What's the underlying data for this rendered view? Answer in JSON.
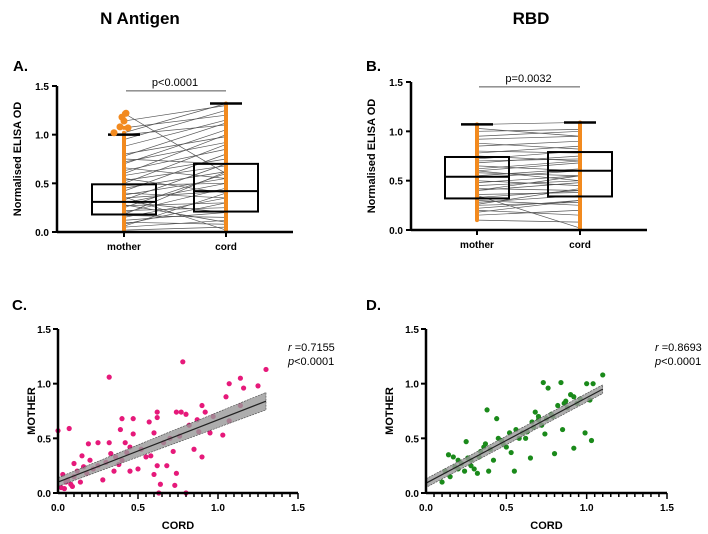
{
  "titles": {
    "left": "N Antigen",
    "right": "RBD"
  },
  "colors": {
    "paired_dots": "#f28a1f",
    "scatter_C": "#e6197a",
    "scatter_D": "#1a8a1a",
    "lines": "#555555",
    "ci_band": "#999999"
  },
  "chart_data": [
    {
      "panel": "A.",
      "type": "box-paired",
      "ylabel": "Normalised ELISA OD",
      "ylim": [
        0,
        1.5
      ],
      "yticks": [
        "0.0",
        "0.5",
        "1.0",
        "1.5"
      ],
      "categories": [
        "mother",
        "cord"
      ],
      "annotation": "p<0.0001",
      "boxes": [
        {
          "min": 0.0,
          "q1": 0.18,
          "median": 0.31,
          "q3": 0.49,
          "max": 1.0,
          "outliers": [
            1.02,
            1.07,
            1.08,
            1.14,
            1.18,
            1.22
          ]
        },
        {
          "min": 0.0,
          "q1": 0.21,
          "median": 0.42,
          "q3": 0.7,
          "max": 1.32
        }
      ],
      "pairs": [
        [
          0.02,
          0.05
        ],
        [
          0.05,
          0.12
        ],
        [
          0.08,
          0.3
        ],
        [
          0.1,
          0.08
        ],
        [
          0.12,
          0.2
        ],
        [
          0.15,
          0.35
        ],
        [
          0.17,
          0.15
        ],
        [
          0.2,
          0.45
        ],
        [
          0.22,
          0.25
        ],
        [
          0.25,
          0.6
        ],
        [
          0.27,
          0.3
        ],
        [
          0.3,
          0.5
        ],
        [
          0.31,
          0.2
        ],
        [
          0.33,
          0.7
        ],
        [
          0.35,
          0.42
        ],
        [
          0.38,
          0.55
        ],
        [
          0.4,
          0.35
        ],
        [
          0.42,
          0.8
        ],
        [
          0.45,
          0.62
        ],
        [
          0.48,
          0.5
        ],
        [
          0.5,
          0.9
        ],
        [
          0.53,
          0.68
        ],
        [
          0.55,
          0.4
        ],
        [
          0.58,
          0.75
        ],
        [
          0.6,
          1.0
        ],
        [
          0.63,
          0.85
        ],
        [
          0.66,
          0.55
        ],
        [
          0.7,
          1.05
        ],
        [
          0.72,
          0.92
        ],
        [
          0.75,
          0.7
        ],
        [
          0.78,
          1.12
        ],
        [
          0.8,
          0.98
        ],
        [
          0.88,
          1.15
        ],
        [
          0.95,
          1.25
        ],
        [
          1.0,
          1.1
        ],
        [
          1.02,
          1.32
        ],
        [
          1.07,
          1.2
        ],
        [
          1.14,
          1.3
        ],
        [
          1.22,
          0.6
        ],
        [
          0.28,
          0.1
        ],
        [
          0.36,
          0.02
        ],
        [
          0.18,
          0.62
        ],
        [
          0.06,
          0.4
        ]
      ]
    },
    {
      "panel": "B.",
      "type": "box-paired",
      "ylabel": "Normalised ELISA OD",
      "ylim": [
        0,
        1.5
      ],
      "yticks": [
        "0.0",
        "0.5",
        "1.0",
        "1.5"
      ],
      "categories": [
        "mother",
        "cord"
      ],
      "annotation": "p=0.0032",
      "boxes": [
        {
          "min": 0.1,
          "q1": 0.32,
          "median": 0.54,
          "q3": 0.74,
          "max": 1.07,
          "outliers": []
        },
        {
          "min": 0.0,
          "q1": 0.34,
          "median": 0.6,
          "q3": 0.79,
          "max": 1.09
        }
      ],
      "pairs": [
        [
          0.1,
          0.08
        ],
        [
          0.15,
          0.2
        ],
        [
          0.2,
          0.15
        ],
        [
          0.22,
          0.3
        ],
        [
          0.25,
          0.28
        ],
        [
          0.28,
          0.35
        ],
        [
          0.3,
          0.25
        ],
        [
          0.33,
          0.4
        ],
        [
          0.36,
          0.38
        ],
        [
          0.4,
          0.48
        ],
        [
          0.42,
          0.4
        ],
        [
          0.45,
          0.5
        ],
        [
          0.48,
          0.55
        ],
        [
          0.5,
          0.45
        ],
        [
          0.53,
          0.6
        ],
        [
          0.55,
          0.62
        ],
        [
          0.58,
          0.55
        ],
        [
          0.6,
          0.68
        ],
        [
          0.62,
          0.7
        ],
        [
          0.65,
          0.6
        ],
        [
          0.68,
          0.75
        ],
        [
          0.7,
          0.72
        ],
        [
          0.72,
          0.8
        ],
        [
          0.75,
          0.7
        ],
        [
          0.78,
          0.85
        ],
        [
          0.8,
          0.78
        ],
        [
          0.85,
          0.9
        ],
        [
          0.88,
          0.82
        ],
        [
          0.92,
          0.95
        ],
        [
          0.95,
          1.0
        ],
        [
          1.0,
          1.02
        ],
        [
          1.03,
          0.95
        ],
        [
          1.07,
          1.09
        ],
        [
          0.35,
          0.02
        ],
        [
          0.4,
          0.55
        ],
        [
          0.26,
          0.42
        ],
        [
          0.6,
          0.5
        ],
        [
          0.18,
          0.3
        ]
      ]
    },
    {
      "panel": "C.",
      "type": "scatter",
      "xlabel": "CORD",
      "ylabel": "MOTHER",
      "xlim": [
        0,
        1.5
      ],
      "ylim": [
        0,
        1.5
      ],
      "xticks": [
        "0.0",
        "0.5",
        "1.0",
        "1.5"
      ],
      "yticks": [
        "0.0",
        "0.5",
        "1.0",
        "1.5"
      ],
      "r_label": "r",
      "r_value": "=0.7155",
      "p_label": "p",
      "p_value": "<0.0001",
      "fit": {
        "x": [
          0,
          1.3
        ],
        "y": [
          0.1,
          0.84
        ],
        "ci_halfwidth": [
          0.04,
          0.08
        ]
      },
      "points": [
        [
          0,
          0.57
        ],
        [
          0.07,
          0.59
        ],
        [
          0.32,
          1.06
        ],
        [
          0.78,
          1.2
        ],
        [
          1.3,
          1.13
        ],
        [
          1.14,
          1.05
        ],
        [
          1.07,
          1.0
        ],
        [
          1.25,
          0.98
        ],
        [
          1.16,
          0.96
        ],
        [
          1.05,
          0.88
        ],
        [
          1.14,
          0.8
        ],
        [
          0.9,
          0.8
        ],
        [
          0.92,
          0.74
        ],
        [
          0.62,
          0.74
        ],
        [
          0.74,
          0.74
        ],
        [
          0.77,
          0.74
        ],
        [
          0.4,
          0.68
        ],
        [
          0.47,
          0.68
        ],
        [
          0.62,
          0.69
        ],
        [
          0.8,
          0.72
        ],
        [
          0.97,
          0.7
        ],
        [
          1.07,
          0.66
        ],
        [
          1.03,
          0.53
        ],
        [
          0.82,
          0.62
        ],
        [
          0.87,
          0.67
        ],
        [
          0.57,
          0.65
        ],
        [
          0.39,
          0.58
        ],
        [
          0.19,
          0.45
        ],
        [
          0.25,
          0.46
        ],
        [
          0.32,
          0.46
        ],
        [
          0.42,
          0.46
        ],
        [
          0.47,
          0.54
        ],
        [
          0.6,
          0.55
        ],
        [
          0.7,
          0.5
        ],
        [
          0.55,
          0.33
        ],
        [
          0.62,
          0.25
        ],
        [
          0.64,
          0.08
        ],
        [
          0.73,
          0.07
        ],
        [
          0.8,
          0.0
        ],
        [
          0.63,
          0.0
        ],
        [
          0.74,
          0.18
        ],
        [
          0.9,
          0.33
        ],
        [
          0.95,
          0.55
        ],
        [
          0.68,
          0.25
        ],
        [
          0.6,
          0.17
        ],
        [
          0.15,
          0.34
        ],
        [
          0.2,
          0.3
        ],
        [
          0.3,
          0.28
        ],
        [
          0.35,
          0.2
        ],
        [
          0.45,
          0.2
        ],
        [
          0.1,
          0.15
        ],
        [
          0.05,
          0.1
        ],
        [
          0.08,
          0.08
        ],
        [
          0.02,
          0.05
        ],
        [
          0.12,
          0.2
        ],
        [
          0.03,
          0.17
        ],
        [
          0.06,
          0.12
        ],
        [
          0.18,
          0.18
        ],
        [
          0.25,
          0.25
        ],
        [
          0.4,
          0.3
        ],
        [
          0.5,
          0.22
        ],
        [
          0.28,
          0.12
        ],
        [
          0.1,
          0.27
        ],
        [
          0.22,
          0.22
        ],
        [
          0.36,
          0.33
        ],
        [
          0.52,
          0.4
        ],
        [
          0.45,
          0.42
        ],
        [
          0.66,
          0.46
        ],
        [
          0.72,
          0.38
        ],
        [
          0.85,
          0.4
        ],
        [
          0.88,
          0.56
        ],
        [
          0.04,
          0.04
        ],
        [
          0.09,
          0.06
        ],
        [
          0.14,
          0.1
        ],
        [
          0.16,
          0.24
        ],
        [
          0.33,
          0.36
        ],
        [
          0.38,
          0.26
        ],
        [
          0.43,
          0.37
        ],
        [
          0.58,
          0.34
        ],
        [
          0.76,
          0.52
        ]
      ]
    },
    {
      "panel": "D.",
      "type": "scatter",
      "xlabel": "CORD",
      "ylabel": "MOTHER",
      "xlim": [
        0,
        1.5
      ],
      "ylim": [
        0,
        1.5
      ],
      "xticks": [
        "0.0",
        "0.5",
        "1.0",
        "1.5"
      ],
      "yticks": [
        "0.0",
        "0.5",
        "1.0",
        "1.5"
      ],
      "r_label": "r",
      "r_value": "=0.8693",
      "p_label": "p",
      "p_value": "<0.0001",
      "fit": {
        "x": [
          0,
          1.1
        ],
        "y": [
          0.09,
          0.95
        ],
        "ci_halfwidth": [
          0.04,
          0.04
        ]
      },
      "points": [
        [
          0.1,
          0.1
        ],
        [
          0.12,
          0.2
        ],
        [
          0.14,
          0.35
        ],
        [
          0.15,
          0.15
        ],
        [
          0.17,
          0.33
        ],
        [
          0.18,
          0.24
        ],
        [
          0.2,
          0.22
        ],
        [
          0.22,
          0.27
        ],
        [
          0.25,
          0.47
        ],
        [
          0.26,
          0.32
        ],
        [
          0.28,
          0.3
        ],
        [
          0.3,
          0.22
        ],
        [
          0.32,
          0.18
        ],
        [
          0.34,
          0.38
        ],
        [
          0.37,
          0.45
        ],
        [
          0.38,
          0.76
        ],
        [
          0.39,
          0.2
        ],
        [
          0.42,
          0.3
        ],
        [
          0.44,
          0.68
        ],
        [
          0.45,
          0.5
        ],
        [
          0.47,
          0.48
        ],
        [
          0.5,
          0.42
        ],
        [
          0.53,
          0.37
        ],
        [
          0.55,
          0.2
        ],
        [
          0.56,
          0.58
        ],
        [
          0.6,
          0.55
        ],
        [
          0.62,
          0.5
        ],
        [
          0.65,
          0.32
        ],
        [
          0.67,
          0.6
        ],
        [
          0.68,
          0.74
        ],
        [
          0.7,
          0.67
        ],
        [
          0.72,
          0.62
        ],
        [
          0.73,
          1.01
        ],
        [
          0.75,
          0.68
        ],
        [
          0.76,
          0.96
        ],
        [
          0.78,
          0.72
        ],
        [
          0.8,
          0.36
        ],
        [
          0.82,
          0.8
        ],
        [
          0.84,
          1.01
        ],
        [
          0.85,
          0.58
        ],
        [
          0.87,
          0.84
        ],
        [
          0.88,
          0.78
        ],
        [
          0.9,
          0.9
        ],
        [
          0.92,
          0.41
        ],
        [
          0.94,
          0.82
        ],
        [
          0.96,
          0.86
        ],
        [
          0.99,
          0.55
        ],
        [
          1.0,
          1.0
        ],
        [
          1.02,
          0.85
        ],
        [
          1.03,
          0.48
        ],
        [
          1.04,
          1.0
        ],
        [
          1.1,
          1.08
        ],
        [
          0.2,
          0.3
        ],
        [
          0.28,
          0.25
        ],
        [
          0.33,
          0.33
        ],
        [
          0.4,
          0.4
        ],
        [
          0.48,
          0.45
        ],
        [
          0.58,
          0.5
        ],
        [
          0.63,
          0.56
        ],
        [
          0.7,
          0.7
        ],
        [
          0.79,
          0.7
        ],
        [
          0.86,
          0.82
        ],
        [
          0.92,
          0.88
        ],
        [
          0.24,
          0.2
        ],
        [
          0.36,
          0.42
        ],
        [
          0.52,
          0.55
        ],
        [
          0.66,
          0.65
        ],
        [
          0.74,
          0.54
        ]
      ]
    }
  ]
}
